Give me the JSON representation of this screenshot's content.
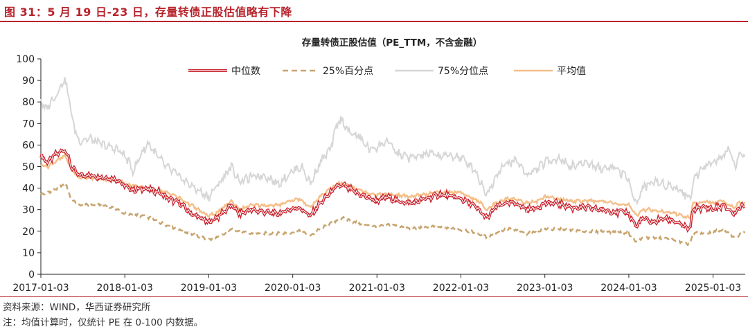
{
  "figure_title": "图 31：5 月 19 日-23 日，存量转债正股估值略有下降",
  "notes": {
    "source": "资料来源：WIND，华西证券研究所",
    "comment": "注：均值计算时，仅统计 PE 在 0-100 内数据。"
  },
  "colors": {
    "median": "#c8202b",
    "p25": "#c8a46e",
    "p75": "#d6d6d6",
    "mean": "#f5bf8a",
    "title_red": "#b8232b"
  },
  "chart_data": {
    "type": "line",
    "title": "存量转债正股估值（PE_TTM，不含金融）",
    "xlabel": "",
    "ylabel": "",
    "ylim": [
      0,
      100
    ],
    "yticks": [
      0,
      10,
      20,
      30,
      40,
      50,
      60,
      70,
      80,
      90,
      100
    ],
    "xlim": [
      "2017-01-03",
      "2025-05-23"
    ],
    "xticks": [
      "2017-01-03",
      "2018-01-03",
      "2019-01-03",
      "2020-01-03",
      "2021-01-03",
      "2022-01-03",
      "2023-01-03",
      "2024-01-03",
      "2025-01-03"
    ],
    "grid": false,
    "legend": "top-center",
    "series": [
      {
        "name": "中位数",
        "style": "double-red",
        "points": [
          [
            "2017-01-03",
            55
          ],
          [
            "2017-02-01",
            52
          ],
          [
            "2017-03-01",
            55
          ],
          [
            "2017-04-01",
            57
          ],
          [
            "2017-04-20",
            58
          ],
          [
            "2017-05-15",
            50
          ],
          [
            "2017-06-15",
            46
          ],
          [
            "2017-08-01",
            46
          ],
          [
            "2017-10-01",
            45
          ],
          [
            "2017-12-01",
            44
          ],
          [
            "2018-01-03",
            41
          ],
          [
            "2018-02-10",
            39
          ],
          [
            "2018-04-01",
            40
          ],
          [
            "2018-06-01",
            38
          ],
          [
            "2018-07-15",
            35
          ],
          [
            "2018-09-01",
            33
          ],
          [
            "2018-10-20",
            28
          ],
          [
            "2018-12-01",
            26
          ],
          [
            "2019-01-03",
            24
          ],
          [
            "2019-02-15",
            27
          ],
          [
            "2019-04-10",
            32
          ],
          [
            "2019-05-20",
            28
          ],
          [
            "2019-07-01",
            30
          ],
          [
            "2019-09-01",
            29
          ],
          [
            "2019-11-01",
            28
          ],
          [
            "2019-12-15",
            30
          ],
          [
            "2020-02-01",
            31
          ],
          [
            "2020-03-20",
            27
          ],
          [
            "2020-05-01",
            33
          ],
          [
            "2020-07-15",
            41
          ],
          [
            "2020-08-15",
            41
          ],
          [
            "2020-10-01",
            38
          ],
          [
            "2020-11-15",
            36
          ],
          [
            "2021-01-03",
            34
          ],
          [
            "2021-02-15",
            36
          ],
          [
            "2021-04-01",
            34
          ],
          [
            "2021-06-01",
            33
          ],
          [
            "2021-08-01",
            35
          ],
          [
            "2021-10-01",
            37
          ],
          [
            "2021-12-01",
            36
          ],
          [
            "2022-01-03",
            35
          ],
          [
            "2022-02-15",
            33
          ],
          [
            "2022-03-20",
            30
          ],
          [
            "2022-04-27",
            26
          ],
          [
            "2022-06-01",
            31
          ],
          [
            "2022-07-15",
            33
          ],
          [
            "2022-09-01",
            33
          ],
          [
            "2022-10-15",
            30
          ],
          [
            "2022-12-01",
            31
          ],
          [
            "2023-01-03",
            33
          ],
          [
            "2023-03-01",
            33
          ],
          [
            "2023-05-01",
            31
          ],
          [
            "2023-07-01",
            31
          ],
          [
            "2023-09-01",
            30
          ],
          [
            "2023-11-01",
            29
          ],
          [
            "2023-12-15",
            29
          ],
          [
            "2024-01-03",
            28
          ],
          [
            "2024-02-05",
            22
          ],
          [
            "2024-03-01",
            26
          ],
          [
            "2024-04-15",
            24
          ],
          [
            "2024-06-01",
            26
          ],
          [
            "2024-07-15",
            25
          ],
          [
            "2024-09-01",
            22
          ],
          [
            "2024-09-25",
            21
          ],
          [
            "2024-10-08",
            30
          ],
          [
            "2024-11-01",
            31
          ],
          [
            "2024-12-15",
            31
          ],
          [
            "2025-01-03",
            30
          ],
          [
            "2025-02-15",
            32
          ],
          [
            "2025-04-07",
            28
          ],
          [
            "2025-04-25",
            31
          ],
          [
            "2025-05-23",
            32
          ]
        ]
      },
      {
        "name": "25%百分点",
        "style": "dashed",
        "points": [
          [
            "2017-01-03",
            37
          ],
          [
            "2017-03-01",
            39
          ],
          [
            "2017-04-20",
            42
          ],
          [
            "2017-05-15",
            35
          ],
          [
            "2017-06-15",
            32
          ],
          [
            "2017-08-01",
            32
          ],
          [
            "2017-10-01",
            32
          ],
          [
            "2017-12-01",
            30
          ],
          [
            "2018-01-03",
            28
          ],
          [
            "2018-04-01",
            27
          ],
          [
            "2018-07-01",
            23
          ],
          [
            "2018-10-15",
            19
          ],
          [
            "2019-01-03",
            16
          ],
          [
            "2019-03-01",
            18
          ],
          [
            "2019-04-10",
            21
          ],
          [
            "2019-07-01",
            19
          ],
          [
            "2019-10-01",
            19
          ],
          [
            "2019-12-15",
            19
          ],
          [
            "2020-02-01",
            20
          ],
          [
            "2020-03-20",
            18
          ],
          [
            "2020-05-01",
            21
          ],
          [
            "2020-07-15",
            25
          ],
          [
            "2020-08-15",
            26
          ],
          [
            "2020-10-01",
            24
          ],
          [
            "2021-01-03",
            22
          ],
          [
            "2021-03-01",
            23
          ],
          [
            "2021-06-01",
            21
          ],
          [
            "2021-09-01",
            22
          ],
          [
            "2021-12-01",
            21
          ],
          [
            "2022-02-15",
            20
          ],
          [
            "2022-04-27",
            17
          ],
          [
            "2022-06-01",
            19
          ],
          [
            "2022-08-01",
            21
          ],
          [
            "2022-10-15",
            19
          ],
          [
            "2023-01-03",
            21
          ],
          [
            "2023-04-01",
            21
          ],
          [
            "2023-07-01",
            20
          ],
          [
            "2023-10-01",
            20
          ],
          [
            "2024-01-03",
            19
          ],
          [
            "2024-02-05",
            15
          ],
          [
            "2024-03-01",
            17
          ],
          [
            "2024-06-01",
            17
          ],
          [
            "2024-09-25",
            14
          ],
          [
            "2024-10-08",
            19
          ],
          [
            "2024-12-15",
            19
          ],
          [
            "2025-01-03",
            20
          ],
          [
            "2025-03-01",
            20
          ],
          [
            "2025-04-07",
            17
          ],
          [
            "2025-05-23",
            20
          ]
        ]
      },
      {
        "name": "75%分位点",
        "style": "solid-gray",
        "points": [
          [
            "2017-01-03",
            82
          ],
          [
            "2017-01-20",
            76
          ],
          [
            "2017-02-15",
            80
          ],
          [
            "2017-03-15",
            84
          ],
          [
            "2017-04-10",
            90
          ],
          [
            "2017-04-25",
            88
          ],
          [
            "2017-05-20",
            72
          ],
          [
            "2017-06-15",
            62
          ],
          [
            "2017-08-01",
            63
          ],
          [
            "2017-10-01",
            60
          ],
          [
            "2017-12-01",
            58
          ],
          [
            "2018-01-03",
            55
          ],
          [
            "2018-02-10",
            48
          ],
          [
            "2018-03-15",
            56
          ],
          [
            "2018-04-15",
            61
          ],
          [
            "2018-05-15",
            56
          ],
          [
            "2018-07-01",
            50
          ],
          [
            "2018-09-01",
            45
          ],
          [
            "2018-10-20",
            41
          ],
          [
            "2018-12-15",
            37
          ],
          [
            "2019-01-03",
            36
          ],
          [
            "2019-02-15",
            42
          ],
          [
            "2019-04-10",
            50
          ],
          [
            "2019-05-20",
            43
          ],
          [
            "2019-07-01",
            45
          ],
          [
            "2019-09-01",
            46
          ],
          [
            "2019-11-01",
            42
          ],
          [
            "2020-01-03",
            48
          ],
          [
            "2020-02-10",
            50
          ],
          [
            "2020-03-20",
            42
          ],
          [
            "2020-05-01",
            52
          ],
          [
            "2020-06-15",
            58
          ],
          [
            "2020-07-15",
            70
          ],
          [
            "2020-08-05",
            72
          ],
          [
            "2020-09-01",
            66
          ],
          [
            "2020-10-15",
            64
          ],
          [
            "2020-12-01",
            58
          ],
          [
            "2021-01-03",
            59
          ],
          [
            "2021-02-15",
            62
          ],
          [
            "2021-04-01",
            56
          ],
          [
            "2021-06-01",
            54
          ],
          [
            "2021-08-15",
            56
          ],
          [
            "2021-10-15",
            55
          ],
          [
            "2021-12-01",
            55
          ],
          [
            "2022-01-03",
            54
          ],
          [
            "2022-03-01",
            49
          ],
          [
            "2022-04-27",
            37
          ],
          [
            "2022-06-15",
            48
          ],
          [
            "2022-07-15",
            51
          ],
          [
            "2022-09-01",
            53
          ],
          [
            "2022-10-20",
            46
          ],
          [
            "2022-12-01",
            49
          ],
          [
            "2023-01-03",
            52
          ],
          [
            "2023-03-01",
            54
          ],
          [
            "2023-05-01",
            50
          ],
          [
            "2023-07-01",
            52
          ],
          [
            "2023-09-01",
            49
          ],
          [
            "2023-11-01",
            50
          ],
          [
            "2024-01-03",
            44
          ],
          [
            "2024-02-05",
            32
          ],
          [
            "2024-03-01",
            40
          ],
          [
            "2024-04-15",
            43
          ],
          [
            "2024-06-01",
            42
          ],
          [
            "2024-08-01",
            40
          ],
          [
            "2024-09-25",
            35
          ],
          [
            "2024-10-08",
            43
          ],
          [
            "2024-11-15",
            50
          ],
          [
            "2024-12-15",
            51
          ],
          [
            "2025-01-03",
            52
          ],
          [
            "2025-02-15",
            55
          ],
          [
            "2025-03-15",
            59
          ],
          [
            "2025-04-07",
            50
          ],
          [
            "2025-04-25",
            55
          ],
          [
            "2025-05-23",
            55
          ]
        ]
      },
      {
        "name": "平均值",
        "style": "solid-orange",
        "points": [
          [
            "2017-01-03",
            51
          ],
          [
            "2017-02-01",
            50
          ],
          [
            "2017-03-01",
            52
          ],
          [
            "2017-04-20",
            55
          ],
          [
            "2017-05-15",
            49
          ],
          [
            "2017-06-15",
            45
          ],
          [
            "2017-08-01",
            45
          ],
          [
            "2017-10-01",
            44
          ],
          [
            "2017-12-01",
            44
          ],
          [
            "2018-01-03",
            42
          ],
          [
            "2018-04-01",
            40
          ],
          [
            "2018-06-01",
            39
          ],
          [
            "2018-08-01",
            37
          ],
          [
            "2018-10-20",
            32
          ],
          [
            "2018-12-01",
            29
          ],
          [
            "2019-01-03",
            27
          ],
          [
            "2019-02-15",
            29
          ],
          [
            "2019-04-10",
            34
          ],
          [
            "2019-05-20",
            30
          ],
          [
            "2019-07-01",
            32
          ],
          [
            "2019-09-01",
            32
          ],
          [
            "2019-11-01",
            32
          ],
          [
            "2019-12-15",
            34
          ],
          [
            "2020-02-01",
            35
          ],
          [
            "2020-03-20",
            31
          ],
          [
            "2020-05-01",
            36
          ],
          [
            "2020-07-15",
            42
          ],
          [
            "2020-08-15",
            42
          ],
          [
            "2020-10-01",
            40
          ],
          [
            "2020-11-15",
            38
          ],
          [
            "2021-01-03",
            37
          ],
          [
            "2021-03-01",
            37
          ],
          [
            "2021-06-01",
            36
          ],
          [
            "2021-08-01",
            37
          ],
          [
            "2021-10-01",
            38
          ],
          [
            "2021-12-01",
            38
          ],
          [
            "2022-01-03",
            38
          ],
          [
            "2022-03-20",
            34
          ],
          [
            "2022-04-27",
            30
          ],
          [
            "2022-06-01",
            33
          ],
          [
            "2022-07-15",
            35
          ],
          [
            "2022-09-01",
            35
          ],
          [
            "2022-10-15",
            33
          ],
          [
            "2022-12-01",
            34
          ],
          [
            "2023-01-03",
            36
          ],
          [
            "2023-03-01",
            35
          ],
          [
            "2023-05-01",
            34
          ],
          [
            "2023-07-01",
            34
          ],
          [
            "2023-09-01",
            34
          ],
          [
            "2023-11-01",
            33
          ],
          [
            "2024-01-03",
            32
          ],
          [
            "2024-02-05",
            27
          ],
          [
            "2024-03-01",
            30
          ],
          [
            "2024-04-15",
            30
          ],
          [
            "2024-06-01",
            29
          ],
          [
            "2024-08-01",
            28
          ],
          [
            "2024-09-25",
            26
          ],
          [
            "2024-10-08",
            33
          ],
          [
            "2024-11-01",
            33
          ],
          [
            "2024-12-15",
            34
          ],
          [
            "2025-01-03",
            33
          ],
          [
            "2025-02-15",
            34
          ],
          [
            "2025-04-07",
            31
          ],
          [
            "2025-04-25",
            33
          ],
          [
            "2025-05-23",
            33
          ]
        ]
      }
    ]
  }
}
